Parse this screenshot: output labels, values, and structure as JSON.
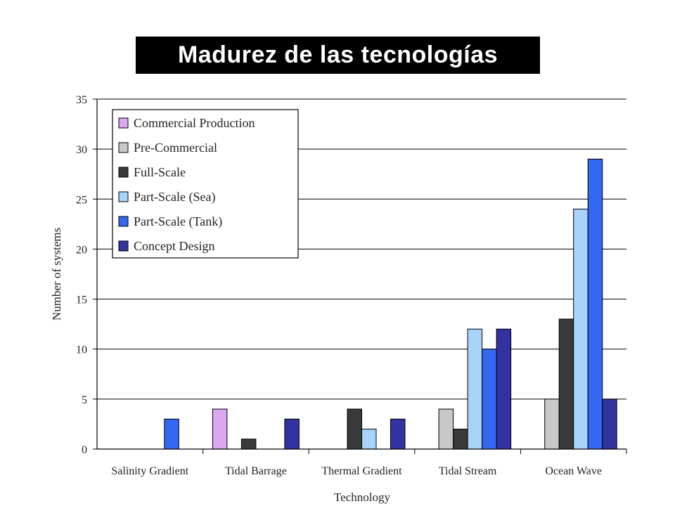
{
  "slide": {
    "title": "Madurez de las tecnologías"
  },
  "chart_data": {
    "type": "bar",
    "title": "",
    "xlabel": "Technology",
    "ylabel": "Number of systems",
    "ylim": [
      0,
      35
    ],
    "yticks": [
      0,
      5,
      10,
      15,
      20,
      25,
      30,
      35
    ],
    "grid": true,
    "legend_position": "top-left",
    "categories": [
      "Salinity Gradient",
      "Tidal Barrage",
      "Thermal Gradient",
      "Tidal Stream",
      "Ocean Wave"
    ],
    "series": [
      {
        "name": "Commercial Production",
        "color": "#d9a8f0",
        "values": [
          0,
          4,
          0,
          0,
          0
        ]
      },
      {
        "name": "Pre-Commercial",
        "color": "#c8c8c8",
        "values": [
          0,
          0,
          0,
          4,
          5
        ]
      },
      {
        "name": "Full-Scale",
        "color": "#3a3a3a",
        "values": [
          0,
          1,
          4,
          2,
          13
        ]
      },
      {
        "name": "Part-Scale (Sea)",
        "color": "#a8d4fa",
        "values": [
          0,
          0,
          2,
          12,
          24
        ]
      },
      {
        "name": "Part-Scale (Tank)",
        "color": "#3468f0",
        "values": [
          3,
          0,
          0,
          10,
          29
        ]
      },
      {
        "name": "Concept Design",
        "color": "#3232a0",
        "values": [
          0,
          3,
          3,
          12,
          5
        ]
      }
    ]
  }
}
